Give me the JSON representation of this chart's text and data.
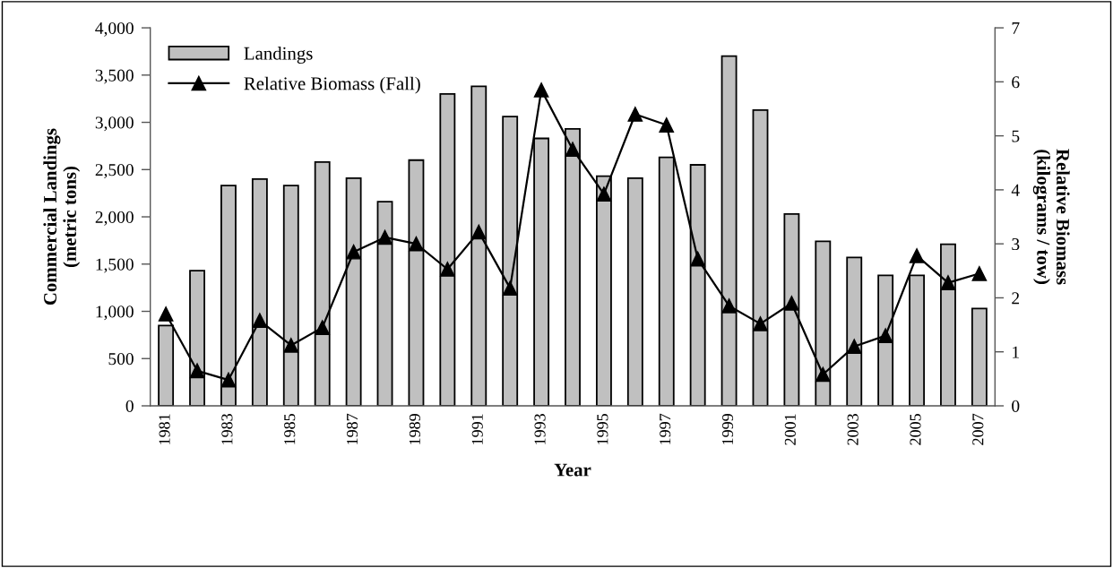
{
  "chart_data": {
    "type": "bar",
    "xlabel": "Year",
    "ylabel": "Commercial Landings\n(metric tons)",
    "y2label": "Relative Biomass\n(kilograms / tow)",
    "categories": [
      "1981",
      null,
      "1983",
      null,
      "1985",
      null,
      "1987",
      null,
      "1989",
      null,
      "1991",
      null,
      "1993",
      null,
      "1995",
      null,
      "1997",
      null,
      "1999",
      null,
      "2001",
      null,
      "2003",
      null,
      "2005",
      null,
      "2007"
    ],
    "series": [
      {
        "name": "Landings",
        "color": "#c0c0c0",
        "values": [
          850,
          1430,
          2330,
          2400,
          2330,
          2580,
          2410,
          2160,
          2600,
          3300,
          3380,
          3060,
          2830,
          2930,
          2430,
          2410,
          2630,
          2550,
          3700,
          3130,
          2030,
          1740,
          1570,
          1380,
          1380,
          1710,
          1030
        ]
      },
      {
        "name": "Relative Biomass (Fall)",
        "type": "line",
        "axis": "y2",
        "color": "#000000",
        "marker": "triangle",
        "values": [
          1.7,
          0.65,
          0.48,
          1.58,
          1.12,
          1.45,
          2.85,
          3.12,
          3.0,
          2.53,
          3.22,
          2.18,
          5.85,
          4.75,
          3.92,
          5.4,
          5.2,
          2.72,
          1.85,
          1.52,
          1.9,
          0.58,
          1.1,
          1.3,
          2.78,
          2.28,
          2.45
        ]
      }
    ],
    "ylim": [
      0,
      4000
    ],
    "yticks": [
      {
        "value": 0,
        "label": "0"
      },
      {
        "value": 500,
        "label": "500"
      },
      {
        "value": 1000,
        "label": "1,000"
      },
      {
        "value": 1500,
        "label": "1,500"
      },
      {
        "value": 2000,
        "label": "2,000"
      },
      {
        "value": 2500,
        "label": "2,500"
      },
      {
        "value": 3000,
        "label": "3,000"
      },
      {
        "value": 3500,
        "label": "3,500"
      },
      {
        "value": 4000,
        "label": "4,000"
      }
    ],
    "y2lim": [
      0,
      7
    ],
    "y2ticks": [
      0,
      1,
      2,
      3,
      4,
      5,
      6,
      7
    ],
    "grid": false,
    "legend": "top left"
  }
}
